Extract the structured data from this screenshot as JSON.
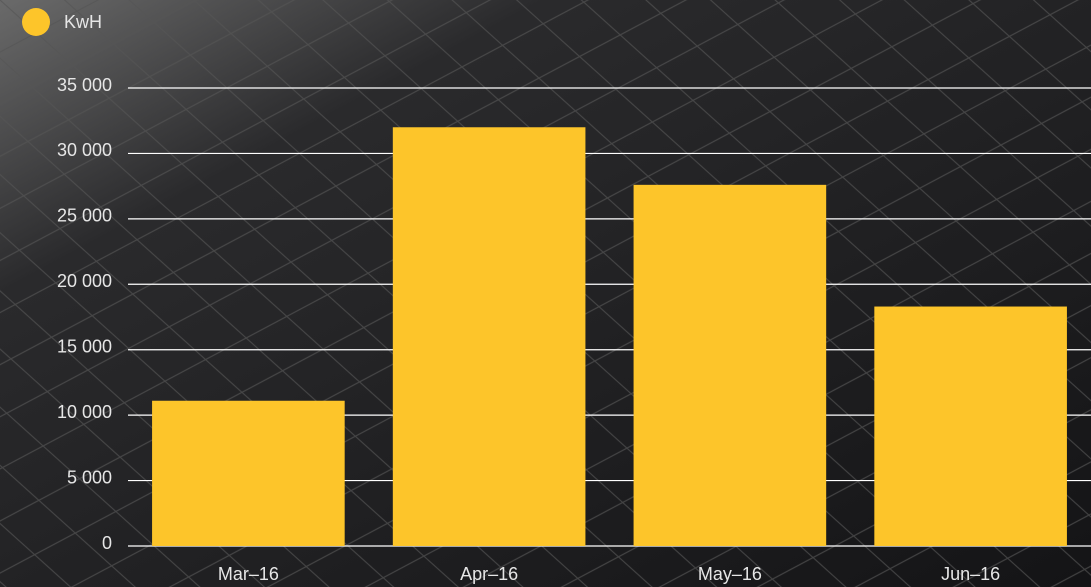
{
  "chart_data": {
    "type": "bar",
    "categories": [
      "Mar–16",
      "Apr–16",
      "May–16",
      "Jun–16"
    ],
    "series": [
      {
        "name": "KwH",
        "color": "#fdc52a",
        "values": [
          11100,
          32000,
          27600,
          18300
        ]
      }
    ],
    "ylim": [
      0,
      35000
    ],
    "yticks": [
      0,
      {
        "value": 5000,
        "label": "5 000"
      },
      {
        "value": 10000,
        "label": "10 000"
      },
      {
        "value": 15000,
        "label": "15 000"
      },
      {
        "value": 20000,
        "label": "20 000"
      },
      {
        "value": 25000,
        "label": "25 000"
      },
      {
        "value": 30000,
        "label": "30 000"
      },
      {
        "value": 35000,
        "label": "35 000"
      }
    ],
    "grid": true
  }
}
